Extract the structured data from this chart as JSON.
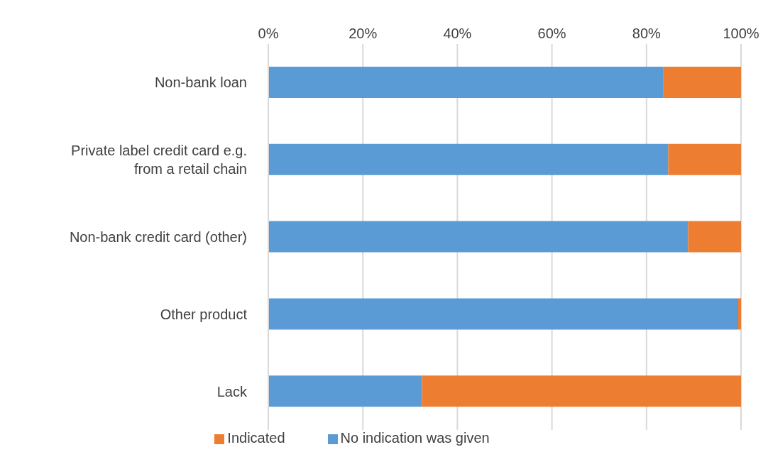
{
  "chart_data": {
    "type": "bar",
    "orientation": "horizontal",
    "stacked": true,
    "categories": [
      "Non-bank loan",
      "Private label credit card e.g. from a retail chain",
      "Non-bank credit card (other)",
      "Other product",
      "Lack"
    ],
    "series": [
      {
        "name": "No indication was given",
        "color": "#5b9bd5",
        "values": [
          83.5,
          84.6,
          88.8,
          99.4,
          32.5
        ]
      },
      {
        "name": "Indicated",
        "color": "#ed7d31",
        "values": [
          16.5,
          15.4,
          11.2,
          0.6,
          67.5
        ]
      }
    ],
    "xlim": [
      0,
      100
    ],
    "xticks": [
      {
        "value": 0,
        "label": "0%"
      },
      {
        "value": 20,
        "label": "20%"
      },
      {
        "value": 40,
        "label": "40%"
      },
      {
        "value": 60,
        "label": "60%"
      },
      {
        "value": 80,
        "label": "80%"
      },
      {
        "value": 100,
        "label": "100%"
      }
    ],
    "grid": "x",
    "legend": "bottom"
  }
}
